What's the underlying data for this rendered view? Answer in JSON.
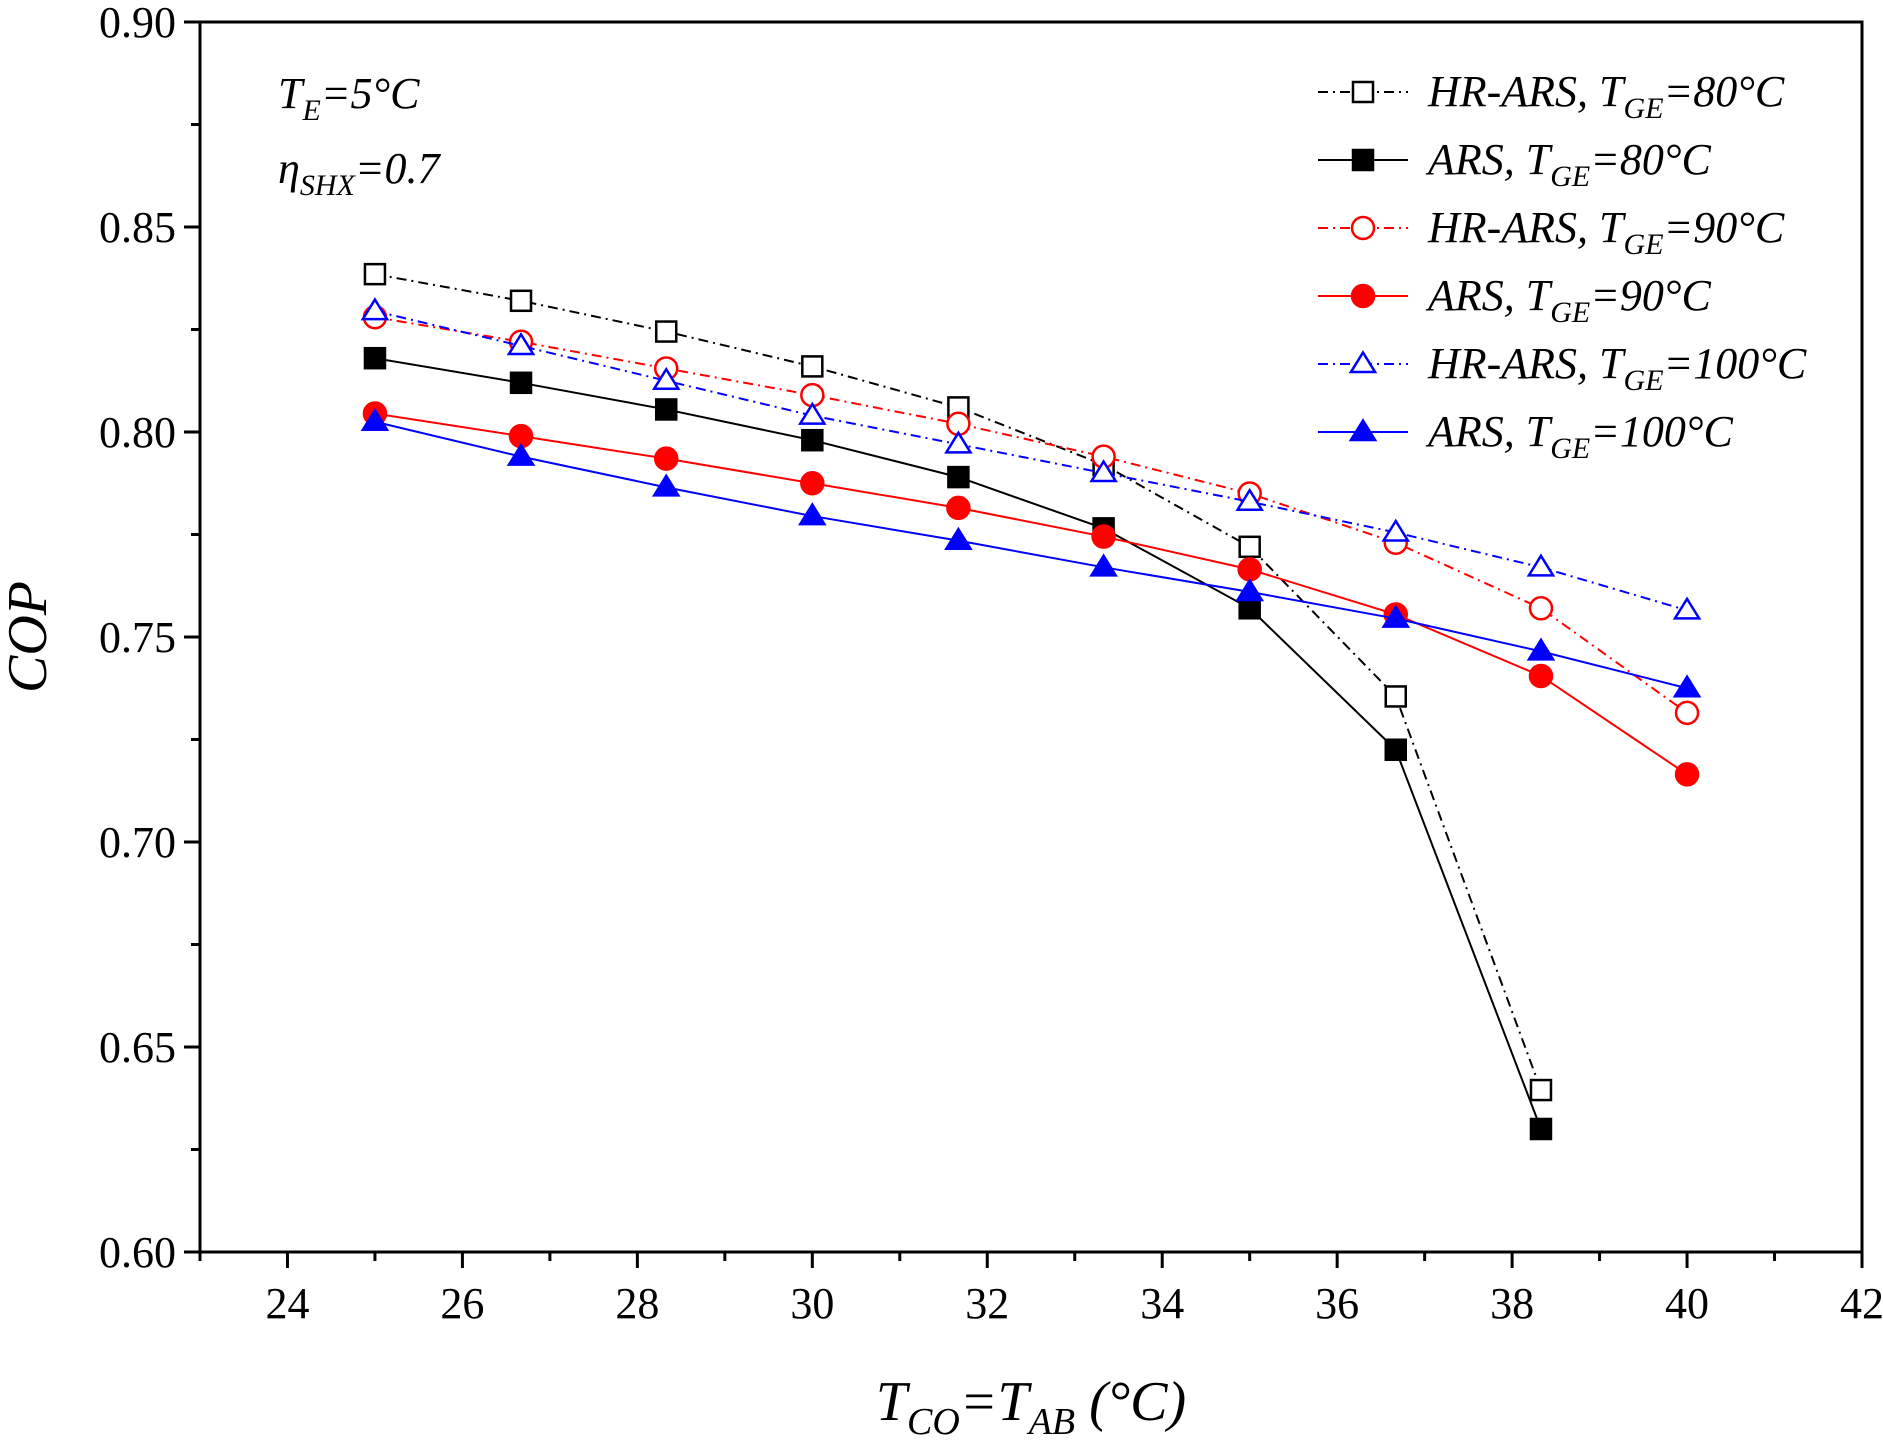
{
  "chart_data": {
    "type": "line",
    "title": "",
    "xlabel": {
      "main": "T",
      "sub1": "CO",
      "mid": "=T",
      "sub2": "AB",
      "tail": " (°C)"
    },
    "ylabel": "COP",
    "xlim": [
      23,
      42
    ],
    "ylim": [
      0.6,
      0.9
    ],
    "xticks": [
      24,
      26,
      28,
      30,
      32,
      34,
      36,
      38,
      40,
      42
    ],
    "yticks": [
      "0.60",
      "0.65",
      "0.70",
      "0.75",
      "0.80",
      "0.85",
      "0.90"
    ],
    "annotations": [
      {
        "main": "T",
        "sub": "E",
        "tail": "=5°C"
      },
      {
        "main": "η",
        "sub": "SHX",
        "tail": "=0.7"
      }
    ],
    "legend_position": "top-right",
    "series": [
      {
        "name": "HR-ARS, TGE=80°C",
        "label_prefix": "HR-ARS, T",
        "label_sub": "GE",
        "label_suffix": "=80°C",
        "color": "#000000",
        "marker": "square",
        "filled": false,
        "line": "dashdot",
        "x": [
          25,
          26.67,
          28.33,
          30,
          31.67,
          33.33,
          35,
          36.67,
          38.33
        ],
        "y": [
          0.8385,
          0.832,
          0.8245,
          0.816,
          0.806,
          0.792,
          0.772,
          0.7355,
          0.6395
        ]
      },
      {
        "name": "ARS, TGE=80°C",
        "label_prefix": "ARS, T",
        "label_sub": "GE",
        "label_suffix": "=80°C",
        "color": "#000000",
        "marker": "square",
        "filled": true,
        "line": "solid",
        "x": [
          25,
          26.67,
          28.33,
          30,
          31.67,
          33.33,
          35,
          36.67,
          38.33
        ],
        "y": [
          0.818,
          0.812,
          0.8055,
          0.798,
          0.789,
          0.7765,
          0.757,
          0.7225,
          0.63
        ]
      },
      {
        "name": "HR-ARS, TGE=90°C",
        "label_prefix": "HR-ARS, T",
        "label_sub": "GE",
        "label_suffix": "=90°C",
        "color": "#ff0000",
        "marker": "circle",
        "filled": false,
        "line": "dashdot",
        "x": [
          25,
          26.67,
          28.33,
          30,
          31.67,
          33.33,
          35,
          36.67,
          38.33,
          40
        ],
        "y": [
          0.828,
          0.822,
          0.8155,
          0.809,
          0.802,
          0.794,
          0.785,
          0.773,
          0.757,
          0.7315
        ]
      },
      {
        "name": "ARS, TGE=90°C",
        "label_prefix": "ARS, T",
        "label_sub": "GE",
        "label_suffix": "=90°C",
        "color": "#ff0000",
        "marker": "circle",
        "filled": true,
        "line": "solid",
        "x": [
          25,
          26.67,
          28.33,
          30,
          31.67,
          33.33,
          35,
          36.67,
          38.33,
          40
        ],
        "y": [
          0.8045,
          0.799,
          0.7935,
          0.7875,
          0.7815,
          0.7745,
          0.7665,
          0.7555,
          0.7405,
          0.7165
        ]
      },
      {
        "name": "HR-ARS, TGE=100°C",
        "label_prefix": "HR-ARS, T",
        "label_sub": "GE",
        "label_suffix": "=100°C",
        "color": "#0000ff",
        "marker": "triangle",
        "filled": false,
        "line": "dashdot",
        "x": [
          25,
          26.67,
          28.33,
          30,
          31.67,
          33.33,
          35,
          36.67,
          38.33,
          40
        ],
        "y": [
          0.8295,
          0.821,
          0.8125,
          0.804,
          0.797,
          0.79,
          0.783,
          0.7755,
          0.767,
          0.7565
        ]
      },
      {
        "name": "ARS, TGE=100°C",
        "label_prefix": "ARS, T",
        "label_sub": "GE",
        "label_suffix": "=100°C",
        "color": "#0000ff",
        "marker": "triangle",
        "filled": true,
        "line": "solid",
        "x": [
          25,
          26.67,
          28.33,
          30,
          31.67,
          33.33,
          35,
          36.67,
          38.33,
          40
        ],
        "y": [
          0.8025,
          0.794,
          0.7865,
          0.7795,
          0.7735,
          0.767,
          0.761,
          0.7545,
          0.7465,
          0.7375
        ]
      }
    ]
  }
}
